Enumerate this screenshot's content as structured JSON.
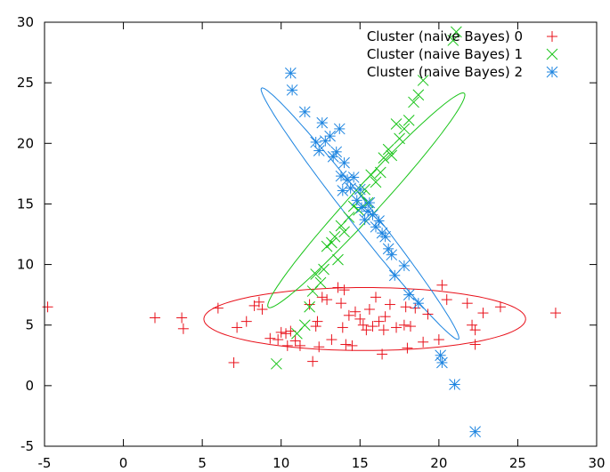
{
  "chart_data": {
    "type": "scatter",
    "title": "",
    "xlabel": "",
    "ylabel": "",
    "xlim": [
      -5,
      30
    ],
    "ylim": [
      -5,
      30
    ],
    "xticks": [
      -5,
      0,
      5,
      10,
      15,
      20,
      25,
      30
    ],
    "yticks": [
      -5,
      0,
      5,
      10,
      15,
      20,
      25,
      30
    ],
    "grid": false,
    "legend_position": "top-right",
    "series": [
      {
        "name": "Cluster (naive Bayes) 0",
        "color": "#e8101a",
        "marker": "plus",
        "points": [
          [
            -4.8,
            6.5
          ],
          [
            2.0,
            5.6
          ],
          [
            3.7,
            5.6
          ],
          [
            3.8,
            4.7
          ],
          [
            6.0,
            6.4
          ],
          [
            7.0,
            1.9
          ],
          [
            7.2,
            4.8
          ],
          [
            7.8,
            5.3
          ],
          [
            8.3,
            6.6
          ],
          [
            8.6,
            6.9
          ],
          [
            8.8,
            6.3
          ],
          [
            9.3,
            3.9
          ],
          [
            9.8,
            3.8
          ],
          [
            10.0,
            4.4
          ],
          [
            10.3,
            4.3
          ],
          [
            10.4,
            3.3
          ],
          [
            10.6,
            4.5
          ],
          [
            10.9,
            3.7
          ],
          [
            11.2,
            3.3
          ],
          [
            11.8,
            6.7
          ],
          [
            12.0,
            2.0
          ],
          [
            12.2,
            4.9
          ],
          [
            12.3,
            5.3
          ],
          [
            12.4,
            3.2
          ],
          [
            12.6,
            7.3
          ],
          [
            12.9,
            7.1
          ],
          [
            13.2,
            3.8
          ],
          [
            13.6,
            8.1
          ],
          [
            13.8,
            6.8
          ],
          [
            13.9,
            4.8
          ],
          [
            14.0,
            7.9
          ],
          [
            14.1,
            3.4
          ],
          [
            14.3,
            5.8
          ],
          [
            14.5,
            3.3
          ],
          [
            14.7,
            6.1
          ],
          [
            15.0,
            5.5
          ],
          [
            15.2,
            5.0
          ],
          [
            15.4,
            4.6
          ],
          [
            15.6,
            6.3
          ],
          [
            15.8,
            4.9
          ],
          [
            16.0,
            7.3
          ],
          [
            16.2,
            5.3
          ],
          [
            16.4,
            2.6
          ],
          [
            16.5,
            4.6
          ],
          [
            16.6,
            5.7
          ],
          [
            16.9,
            6.7
          ],
          [
            17.3,
            4.8
          ],
          [
            17.8,
            5.0
          ],
          [
            17.9,
            6.5
          ],
          [
            18.0,
            3.1
          ],
          [
            18.2,
            4.9
          ],
          [
            18.5,
            6.4
          ],
          [
            19.0,
            3.6
          ],
          [
            19.3,
            5.9
          ],
          [
            20.0,
            3.8
          ],
          [
            20.2,
            8.3
          ],
          [
            20.5,
            7.1
          ],
          [
            21.8,
            6.8
          ],
          [
            22.1,
            5.0
          ],
          [
            22.3,
            4.6
          ],
          [
            22.3,
            3.4
          ],
          [
            22.8,
            6.0
          ],
          [
            23.9,
            6.5
          ],
          [
            27.4,
            6.0
          ]
        ]
      },
      {
        "name": "Cluster (naive Bayes) 1",
        "color": "#19c419",
        "marker": "cross",
        "points": [
          [
            9.7,
            1.8
          ],
          [
            11.0,
            4.3
          ],
          [
            11.5,
            5.0
          ],
          [
            11.8,
            6.5
          ],
          [
            12.0,
            7.8
          ],
          [
            12.2,
            9.2
          ],
          [
            12.5,
            8.5
          ],
          [
            12.7,
            9.6
          ],
          [
            12.9,
            11.5
          ],
          [
            13.2,
            11.8
          ],
          [
            13.4,
            12.3
          ],
          [
            13.6,
            10.4
          ],
          [
            13.8,
            13.2
          ],
          [
            14.0,
            12.7
          ],
          [
            14.3,
            13.9
          ],
          [
            14.6,
            14.8
          ],
          [
            14.9,
            14.5
          ],
          [
            15.1,
            15.7
          ],
          [
            15.3,
            16.2
          ],
          [
            15.5,
            15.1
          ],
          [
            15.7,
            17.4
          ],
          [
            16.0,
            16.8
          ],
          [
            16.3,
            17.6
          ],
          [
            16.5,
            18.8
          ],
          [
            16.8,
            19.5
          ],
          [
            17.0,
            19.0
          ],
          [
            17.3,
            21.6
          ],
          [
            17.5,
            20.4
          ],
          [
            17.8,
            21.2
          ],
          [
            18.1,
            21.9
          ],
          [
            18.4,
            23.4
          ],
          [
            18.7,
            24.0
          ],
          [
            19.0,
            25.2
          ],
          [
            20.9,
            28.5
          ],
          [
            21.1,
            29.2
          ]
        ]
      },
      {
        "name": "Cluster (naive Bayes) 2",
        "color": "#1c84e0",
        "marker": "star",
        "points": [
          [
            10.6,
            25.8
          ],
          [
            10.7,
            24.4
          ],
          [
            11.5,
            22.6
          ],
          [
            12.2,
            20.1
          ],
          [
            12.4,
            19.4
          ],
          [
            12.6,
            21.7
          ],
          [
            12.8,
            20.2
          ],
          [
            13.1,
            20.6
          ],
          [
            13.3,
            18.9
          ],
          [
            13.5,
            19.3
          ],
          [
            13.7,
            21.2
          ],
          [
            13.8,
            17.3
          ],
          [
            13.9,
            16.1
          ],
          [
            14.0,
            18.4
          ],
          [
            14.2,
            17.0
          ],
          [
            14.4,
            16.3
          ],
          [
            14.6,
            17.2
          ],
          [
            14.8,
            15.3
          ],
          [
            15.0,
            16.2
          ],
          [
            15.1,
            14.7
          ],
          [
            15.3,
            13.7
          ],
          [
            15.5,
            14.4
          ],
          [
            15.6,
            15.1
          ],
          [
            15.8,
            14.1
          ],
          [
            16.0,
            13.1
          ],
          [
            16.2,
            13.6
          ],
          [
            16.4,
            12.6
          ],
          [
            16.6,
            12.3
          ],
          [
            16.8,
            11.3
          ],
          [
            17.0,
            10.8
          ],
          [
            17.2,
            9.1
          ],
          [
            17.8,
            9.9
          ],
          [
            18.1,
            7.5
          ],
          [
            18.7,
            6.8
          ],
          [
            20.1,
            2.5
          ],
          [
            20.2,
            1.9
          ],
          [
            21.0,
            0.1
          ],
          [
            22.3,
            -3.8
          ]
        ]
      }
    ],
    "ellipses": [
      {
        "series": 0,
        "center": [
          15.3,
          5.5
        ],
        "radii": [
          10.2,
          2.6
        ],
        "angle_deg": 0
      },
      {
        "series": 1,
        "center": [
          15.4,
          15.3
        ],
        "radii": [
          10.8,
          1.0
        ],
        "angle_deg": 55
      },
      {
        "series": 2,
        "center": [
          15.0,
          14.2
        ],
        "radii": [
          12.1,
          0.8
        ],
        "angle_deg": 121
      }
    ]
  }
}
